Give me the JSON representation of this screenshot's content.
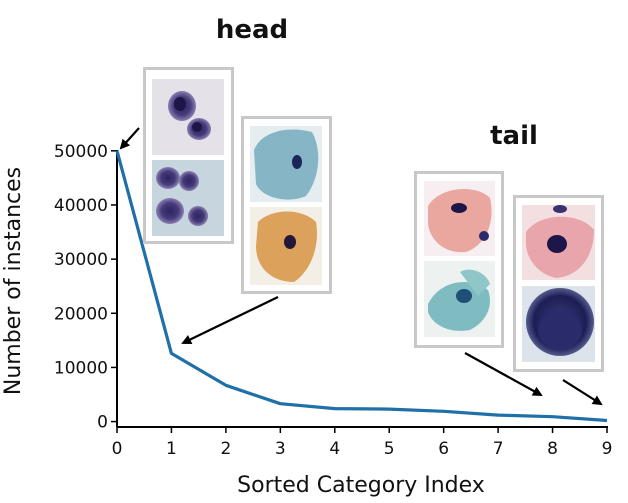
{
  "chart_data": {
    "type": "line",
    "xlabel": "Sorted Category Index",
    "ylabel": "Number of instances",
    "x": [
      0,
      1,
      2,
      3,
      4,
      5,
      6,
      7,
      8,
      9
    ],
    "series": [
      {
        "values": [
          50000,
          12600,
          6700,
          3300,
          2400,
          2300,
          1900,
          1200,
          900,
          200
        ]
      }
    ],
    "xlim": [
      0,
      9
    ],
    "ylim": [
      -1000,
      52000
    ],
    "xticks": [
      "0",
      "1",
      "2",
      "3",
      "4",
      "5",
      "6",
      "7",
      "8",
      "9"
    ],
    "yticks": [
      "0",
      "10000",
      "20000",
      "30000",
      "40000",
      "50000"
    ],
    "line_color": "#1f6fa8",
    "grid": false,
    "legend": "none",
    "annotations": [
      {
        "text": "head"
      },
      {
        "text": "tail"
      }
    ]
  },
  "images": {
    "head_group_1": [
      "purple-nuclei-cells-icon",
      "purple-nuclei-cells-icon"
    ],
    "head_group_2": [
      "blue-squamous-cell-icon",
      "orange-squamous-cell-icon"
    ],
    "tail_group_1": [
      "pink-squamous-cell-icon",
      "teal-cell-cluster-icon"
    ],
    "tail_group_2": [
      "pink-cell-icon",
      "dark-round-cell-icon"
    ]
  }
}
